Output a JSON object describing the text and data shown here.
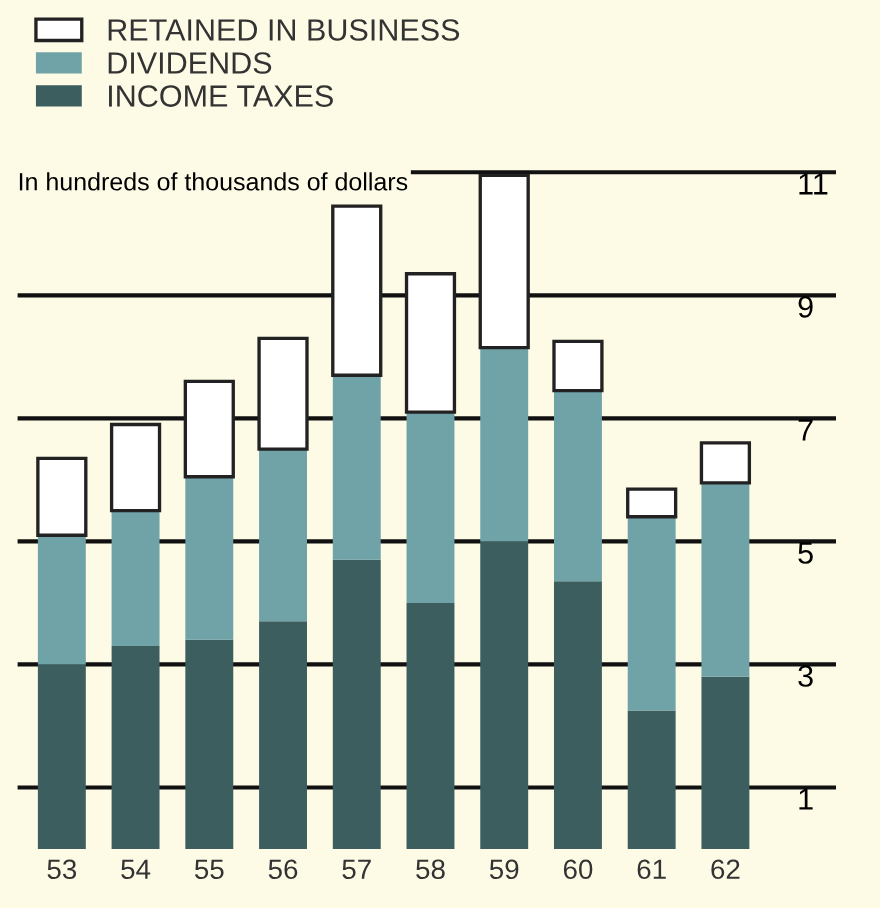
{
  "chart_data": {
    "type": "bar",
    "stacked": true,
    "ylabel": "In hundreds of thousands of dollars",
    "categories": [
      "53",
      "54",
      "55",
      "56",
      "57",
      "58",
      "59",
      "60",
      "61",
      "62"
    ],
    "series": [
      {
        "name": "INCOME TAXES",
        "color": "#3d5e5e",
        "values": [
          3.0,
          3.3,
          3.4,
          3.7,
          4.7,
          4.0,
          5.0,
          4.35,
          2.25,
          2.8
        ]
      },
      {
        "name": "DIVIDENDS",
        "color": "#6fa3a8",
        "values": [
          2.1,
          2.2,
          2.65,
          2.8,
          3.0,
          3.1,
          3.15,
          3.1,
          3.15,
          3.15
        ]
      },
      {
        "name": "RETAINED IN BUSINESS",
        "color": "#ffffff",
        "values": [
          1.25,
          1.4,
          1.55,
          1.8,
          2.75,
          2.25,
          2.8,
          0.8,
          0.45,
          0.65
        ]
      }
    ],
    "ylim": [
      0,
      13.8
    ],
    "yticks": [
      1,
      3,
      5,
      7,
      9,
      11
    ],
    "grid": "y",
    "legend": "top left"
  }
}
